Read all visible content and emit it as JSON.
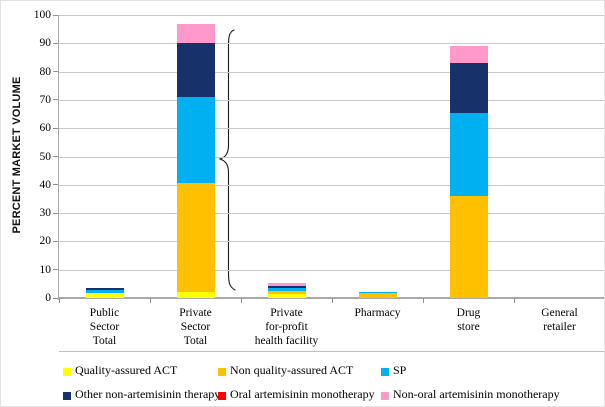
{
  "chart_data": {
    "type": "bar",
    "stacked": true,
    "title": "",
    "xlabel": "",
    "ylabel": "PERCENT MARKET VOLUME",
    "ylim": [
      0,
      100
    ],
    "ytick_step": 10,
    "grid": true,
    "legend_position": "bottom",
    "categories": [
      "Public Sector Total",
      "Private Sector Total",
      "Private for-profit health facility",
      "Pharmacy",
      "Drug store",
      "General retailer"
    ],
    "category_label_lines": [
      [
        "Public",
        "Sector",
        "Total"
      ],
      [
        "Private",
        "Sector",
        "Total"
      ],
      [
        "Private",
        "for-profit",
        "health facility"
      ],
      [
        "Pharmacy"
      ],
      [
        "Drug",
        "store"
      ],
      [
        "General",
        "retailer"
      ]
    ],
    "series": [
      {
        "name": "Quality-assured ACT",
        "color": "#FFFF00",
        "values": [
          1.7,
          2.3,
          1.4,
          0,
          0,
          0
        ]
      },
      {
        "name": "Non quality-assured ACT",
        "color": "#FFC000",
        "values": [
          0,
          38.2,
          1.0,
          1.8,
          36,
          0
        ]
      },
      {
        "name": "SP",
        "color": "#00B0F0",
        "values": [
          1.0,
          30.5,
          1.1,
          0.3,
          29.5,
          0
        ]
      },
      {
        "name": "Other non-artemisinin therapy",
        "color": "#17316B",
        "values": [
          0.9,
          19,
          0.8,
          0,
          17.5,
          0
        ]
      },
      {
        "name": "Oral artemisinin monotherapy",
        "color": "#FF0000",
        "values": [
          0,
          0,
          0,
          0,
          0,
          0
        ]
      },
      {
        "name": "Non-oral artemisinin monotherapy",
        "color": "#FF99CC",
        "values": [
          0,
          7,
          1.1,
          0,
          6,
          0
        ]
      }
    ],
    "totals_note": {
      "public_sector_total": 3.6,
      "private_sector_total": 97,
      "private_for_profit": 5.4,
      "pharmacy": 2.1,
      "drug_store": 89,
      "general_retailer": 0
    },
    "annotations": [
      {
        "type": "curly-brace",
        "between": [
          "Private Sector Total",
          "Private for-profit health facility"
        ]
      }
    ]
  },
  "style_colors": {
    "gridline": "#c9c9c9",
    "axis": "#a9a9a9",
    "brace": "#1a1a1a",
    "text": "#000000"
  },
  "legend": {
    "rows": [
      [
        0,
        1,
        2
      ],
      [
        3,
        4,
        5
      ]
    ],
    "column_lefts": [
      62,
      217,
      380
    ],
    "row_tops": [
      361,
      385
    ]
  }
}
